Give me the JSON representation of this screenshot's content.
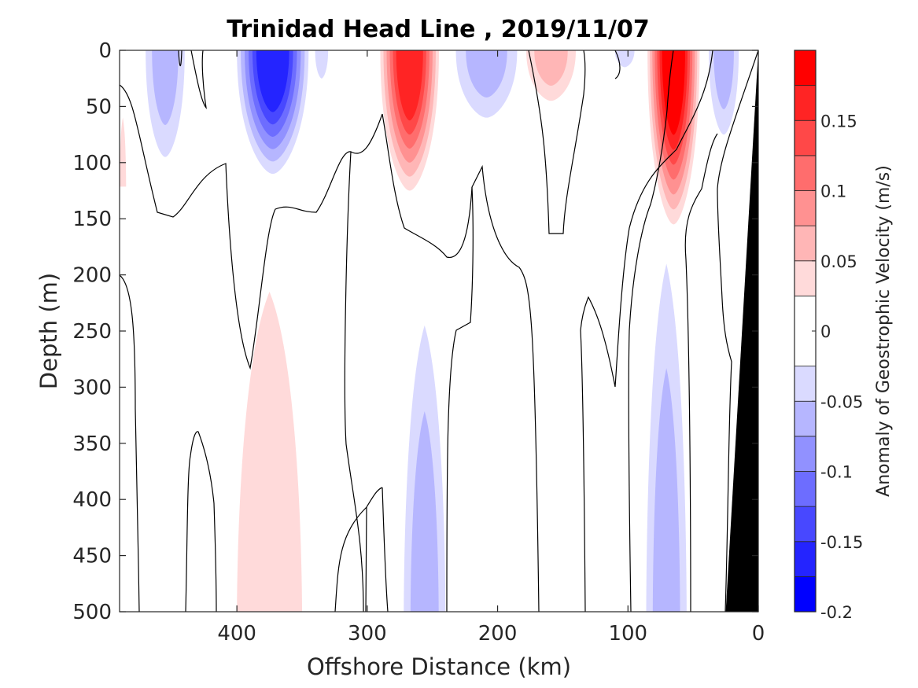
{
  "chart_data": {
    "type": "contour",
    "title": "Trinidad Head Line , 2019/11/07",
    "xlabel": "Offshore Distance (km)",
    "ylabel": "Depth (m)",
    "xlim": [
      490,
      0
    ],
    "ylim": [
      0,
      500
    ],
    "x_reversed": true,
    "y_reversed": true,
    "x_ticks": [
      "400",
      "300",
      "200",
      "100",
      "0"
    ],
    "y_ticks": [
      "0",
      "50",
      "100",
      "150",
      "200",
      "250",
      "300",
      "350",
      "400",
      "450",
      "500"
    ],
    "grid": false,
    "colorbar": {
      "label": "Anomaly of Geostrophic Velocity (m/s)",
      "range": [
        -0.2,
        0.2
      ],
      "levels": [
        -0.2,
        -0.175,
        -0.15,
        -0.125,
        -0.1,
        -0.075,
        -0.05,
        -0.025,
        0.025,
        0.05,
        0.075,
        0.1,
        0.125,
        0.15,
        0.175,
        0.2
      ],
      "tick_values": [
        -0.2,
        -0.15,
        -0.1,
        -0.05,
        0,
        0.05,
        0.1,
        0.15
      ],
      "tick_labels": [
        "-0.2",
        "-0.15",
        "-0.1",
        "-0.05",
        "0",
        "0.05",
        "0.1",
        "0.15"
      ],
      "colors": [
        "#0000ff",
        "#2424ff",
        "#4848ff",
        "#6d6dff",
        "#9191ff",
        "#b6b6ff",
        "#dadaff",
        "#ffffff",
        "#ffdada",
        "#ffb6b6",
        "#ff9191",
        "#ff6d6d",
        "#ff4848",
        "#ff2424",
        "#ff0000"
      ]
    },
    "features": [
      {
        "kind": "negative",
        "level": -0.075,
        "x_range": [
          470,
          440
        ],
        "depth_range": [
          0,
          95
        ]
      },
      {
        "kind": "negative",
        "level": -0.175,
        "x_range": [
          400,
          345
        ],
        "depth_range": [
          0,
          110
        ]
      },
      {
        "kind": "negative",
        "level": -0.05,
        "x_range": [
          340,
          330
        ],
        "depth_range": [
          0,
          25
        ]
      },
      {
        "kind": "positive",
        "level": 0.175,
        "x_range": [
          290,
          245
        ],
        "depth_range": [
          0,
          125
        ]
      },
      {
        "kind": "negative",
        "level": -0.075,
        "x_range": [
          232,
          185
        ],
        "depth_range": [
          0,
          60
        ]
      },
      {
        "kind": "positive",
        "level": 0.075,
        "x_range": [
          178,
          140
        ],
        "depth_range": [
          0,
          45
        ]
      },
      {
        "kind": "negative",
        "level": -0.05,
        "x_range": [
          110,
          95
        ],
        "depth_range": [
          0,
          15
        ]
      },
      {
        "kind": "positive",
        "level": 0.2,
        "x_range": [
          85,
          45
        ],
        "depth_range": [
          0,
          155
        ]
      },
      {
        "kind": "negative",
        "level": -0.075,
        "x_range": [
          38,
          15
        ],
        "depth_range": [
          0,
          75
        ]
      },
      {
        "kind": "positive",
        "level": 0.05,
        "x_range": [
          490,
          485
        ],
        "depth_range": [
          60,
          120
        ]
      },
      {
        "kind": "positive",
        "level": 0.05,
        "x_range": [
          400,
          350
        ],
        "depth_range": [
          215,
          500
        ]
      },
      {
        "kind": "negative",
        "level": -0.075,
        "x_range": [
          272,
          240
        ],
        "depth_range": [
          245,
          500
        ]
      },
      {
        "kind": "negative",
        "level": -0.075,
        "x_range": [
          86,
          55
        ],
        "depth_range": [
          190,
          500
        ]
      },
      {
        "kind": "bathymetry",
        "x_range": [
          25,
          0
        ],
        "depth_range": [
          0,
          500
        ]
      }
    ]
  }
}
